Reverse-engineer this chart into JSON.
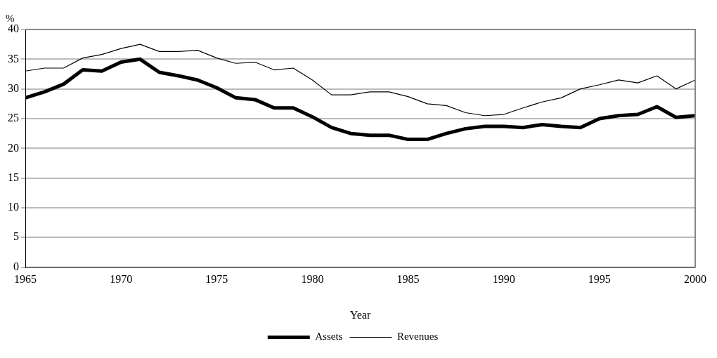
{
  "chart_data": {
    "type": "line",
    "ylabel": "%",
    "xlabel": "Year",
    "x": [
      1965,
      1966,
      1967,
      1968,
      1969,
      1970,
      1971,
      1972,
      1973,
      1974,
      1975,
      1976,
      1977,
      1978,
      1979,
      1980,
      1981,
      1982,
      1983,
      1984,
      1985,
      1986,
      1987,
      1988,
      1989,
      1990,
      1991,
      1992,
      1993,
      1994,
      1995,
      1996,
      1997,
      1998,
      1999,
      2000
    ],
    "series": [
      {
        "name": "Assets",
        "color": "#000000",
        "values": [
          28.5,
          29.5,
          30.8,
          33.2,
          33,
          34.5,
          35,
          32.8,
          32.2,
          31.5,
          30.2,
          28.5,
          28.2,
          26.8,
          26.8,
          25.3,
          23.5,
          22.5,
          22.2,
          22.2,
          21.5,
          21.5,
          22.5,
          23.3,
          23.7,
          23.7,
          23.5,
          24,
          23.7,
          23.5,
          25,
          25.5,
          25.7,
          27,
          25.2,
          25.5
        ]
      },
      {
        "name": "Revenues",
        "color": "#000000",
        "values": [
          33,
          33.5,
          33.5,
          35.2,
          35.8,
          36.8,
          37.5,
          36.3,
          36.3,
          36.5,
          35.2,
          34.3,
          34.5,
          33.2,
          33.5,
          31.5,
          29,
          29,
          29.5,
          29.5,
          28.7,
          27.5,
          27.2,
          26,
          25.5,
          25.7,
          26.8,
          27.8,
          28.5,
          30,
          30.7,
          31.5,
          31,
          32.2,
          30,
          31.5
        ]
      }
    ],
    "xlim": [
      1965,
      2000
    ],
    "xticks": [
      1965,
      1970,
      1975,
      1980,
      1985,
      1990,
      1995,
      2000
    ],
    "ylim": [
      0,
      40
    ],
    "yticks": [
      0,
      5,
      10,
      15,
      20,
      25,
      30,
      35,
      40
    ],
    "grid": "y",
    "legend": "bottom",
    "marker": "none",
    "line_style": "solid"
  }
}
